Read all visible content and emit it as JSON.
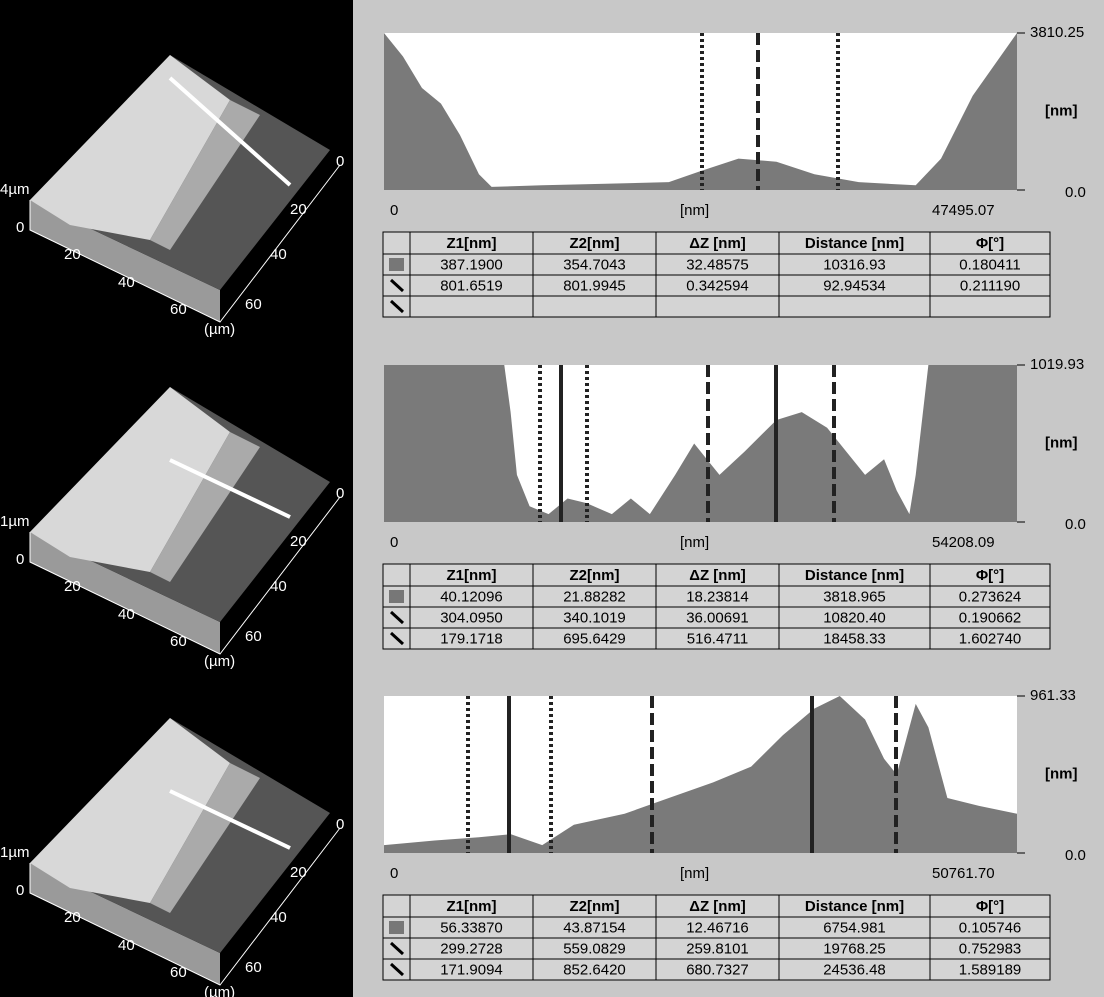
{
  "panels": [
    {
      "image": {
        "z_label": "4µm",
        "z_zero": "0",
        "x_ticks": [
          "20",
          "40",
          "60"
        ],
        "y_ticks": [
          "0",
          "20",
          "40",
          "60"
        ],
        "unit": "(µm)"
      },
      "profile": {
        "y_max": "3810.25",
        "y_unit": "[nm]",
        "y_min": "0.0",
        "x_min": "0",
        "x_unit": "[nm]",
        "x_max": "47495.07"
      },
      "table": {
        "header": [
          "Z1[nm]",
          "Z2[nm]",
          "ΔZ [nm]",
          "Distance [nm]",
          "Φ[°]"
        ],
        "rows": [
          [
            "387.1900",
            "354.7043",
            "32.48575",
            "10316.93",
            "0.180411"
          ],
          [
            "801.6519",
            "801.9945",
            "0.342594",
            "92.94534",
            "0.211190"
          ]
        ]
      }
    },
    {
      "image": {
        "z_label": "1µm",
        "z_zero": "0",
        "x_ticks": [
          "20",
          "40",
          "60"
        ],
        "y_ticks": [
          "0",
          "20",
          "40",
          "60"
        ],
        "unit": "(µm)"
      },
      "profile": {
        "y_max": "1019.93",
        "y_unit": "[nm]",
        "y_min": "0.0",
        "x_min": "0",
        "x_unit": "[nm]",
        "x_max": "54208.09"
      },
      "table": {
        "header": [
          "Z1[nm]",
          "Z2[nm]",
          "ΔZ [nm]",
          "Distance [nm]",
          "Φ[°]"
        ],
        "rows": [
          [
            "40.12096",
            "21.88282",
            "18.23814",
            "3818.965",
            "0.273624"
          ],
          [
            "304.0950",
            "340.1019",
            "36.00691",
            "10820.40",
            "0.190662"
          ],
          [
            "179.1718",
            "695.6429",
            "516.4711",
            "18458.33",
            "1.602740"
          ]
        ]
      }
    },
    {
      "image": {
        "z_label": "1µm",
        "z_zero": "0",
        "x_ticks": [
          "20",
          "40",
          "60"
        ],
        "y_ticks": [
          "0",
          "20",
          "40",
          "60"
        ],
        "unit": "(µm)"
      },
      "profile": {
        "y_max": "961.33",
        "y_unit": "[nm]",
        "y_min": "0.0",
        "x_min": "0",
        "x_unit": "[nm]",
        "x_max": "50761.70"
      },
      "table": {
        "header": [
          "Z1[nm]",
          "Z2[nm]",
          "ΔZ [nm]",
          "Distance [nm]",
          "Φ[°]"
        ],
        "rows": [
          [
            "56.33870",
            "43.87154",
            "12.46716",
            "6754.981",
            "0.105746"
          ],
          [
            "299.2728",
            "559.0829",
            "259.8101",
            "19768.25",
            "0.752983"
          ],
          [
            "171.9094",
            "852.6420",
            "680.7327",
            "24536.48",
            "1.589189"
          ]
        ]
      }
    }
  ]
}
